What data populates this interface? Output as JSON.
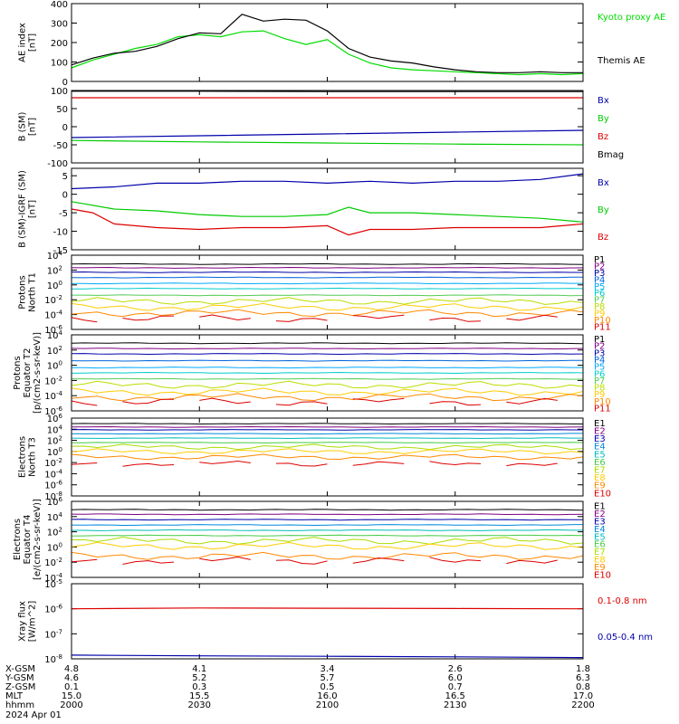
{
  "chart_data": [
    {
      "type": "line",
      "ylabel": "AE index [nT]",
      "yscale": "linear",
      "ylim": [
        0,
        400
      ],
      "yticks": [
        0,
        100,
        200,
        300,
        400
      ],
      "legend_placement": "right",
      "series": [
        {
          "name": "Kyoto proxy AE",
          "color": "#00dd00",
          "x": [
            2000,
            2005,
            2010,
            2015,
            2020,
            2025,
            2030,
            2035,
            2040,
            2045,
            2050,
            2055,
            2100,
            2105,
            2110,
            2115,
            2120,
            2125,
            2130,
            2135,
            2140,
            2145,
            2150,
            2155,
            2200
          ],
          "y": [
            70,
            110,
            140,
            170,
            190,
            230,
            240,
            230,
            255,
            260,
            220,
            190,
            215,
            140,
            95,
            70,
            60,
            55,
            50,
            45,
            40,
            35,
            40,
            35,
            40
          ]
        },
        {
          "name": "Themis AE",
          "color": "#000000",
          "x": [
            2000,
            2005,
            2010,
            2015,
            2020,
            2025,
            2030,
            2035,
            2040,
            2045,
            2050,
            2055,
            2100,
            2105,
            2110,
            2115,
            2120,
            2125,
            2130,
            2135,
            2140,
            2145,
            2150,
            2155,
            2200
          ],
          "y": [
            85,
            120,
            145,
            155,
            180,
            220,
            250,
            245,
            345,
            310,
            320,
            315,
            260,
            170,
            125,
            105,
            95,
            75,
            60,
            50,
            45,
            45,
            50,
            45,
            45
          ]
        }
      ]
    },
    {
      "type": "line",
      "ylabel": "B (SM) [nT]",
      "yscale": "linear",
      "ylim": [
        -100,
        100
      ],
      "yticks": [
        -100,
        -50,
        0,
        50,
        100
      ],
      "series": [
        {
          "name": "Bx",
          "color": "#0000aa",
          "x": [
            2000,
            2030,
            2100,
            2130,
            2200
          ],
          "y": [
            -30,
            -25,
            -20,
            -15,
            -10
          ]
        },
        {
          "name": "By",
          "color": "#00cc00",
          "x": [
            2000,
            2030,
            2100,
            2130,
            2200
          ],
          "y": [
            -38,
            -42,
            -45,
            -48,
            -50
          ]
        },
        {
          "name": "Bz",
          "color": "#dd0000",
          "x": [
            2000,
            2030,
            2100,
            2130,
            2200
          ],
          "y": [
            80,
            80,
            80,
            80,
            80
          ]
        },
        {
          "name": "Bmag",
          "color": "#000000",
          "x": [
            2000,
            2030,
            2100,
            2130,
            2200
          ],
          "y": [
            98,
            98,
            97,
            97,
            97
          ]
        }
      ]
    },
    {
      "type": "line",
      "ylabel": "B (SM)-IGRF (SM) [nT]",
      "yscale": "linear",
      "ylim": [
        -15,
        7
      ],
      "yticks": [
        -15,
        -10,
        -5,
        0,
        5
      ],
      "series": [
        {
          "name": "Bx",
          "color": "#0000aa",
          "x": [
            2000,
            2010,
            2020,
            2030,
            2040,
            2050,
            2100,
            2110,
            2120,
            2130,
            2140,
            2150,
            2200
          ],
          "y": [
            1.5,
            2,
            3,
            3,
            3.5,
            3.5,
            3,
            3.5,
            3,
            3.5,
            3.5,
            4,
            5.5
          ]
        },
        {
          "name": "By",
          "color": "#00cc00",
          "x": [
            2000,
            2010,
            2020,
            2030,
            2040,
            2050,
            2100,
            2105,
            2110,
            2120,
            2130,
            2140,
            2150,
            2200
          ],
          "y": [
            -2,
            -4,
            -4.5,
            -5.5,
            -6,
            -6,
            -5.5,
            -3.5,
            -5,
            -5,
            -5.5,
            -6,
            -6.5,
            -7.5
          ]
        },
        {
          "name": "Bz",
          "color": "#dd0000",
          "x": [
            2000,
            2005,
            2010,
            2020,
            2030,
            2040,
            2050,
            2100,
            2105,
            2110,
            2120,
            2130,
            2140,
            2150,
            2200
          ],
          "y": [
            -4,
            -5,
            -8,
            -9,
            -9.5,
            -9,
            -9,
            -8.5,
            -11,
            -9.5,
            -9.5,
            -9,
            -9,
            -9,
            -8
          ]
        }
      ]
    },
    {
      "type": "line",
      "ylabel": "Protons North T1",
      "yscale": "log",
      "ylim_exp": [
        -6,
        4
      ],
      "ytick_labels": [
        "10-6",
        "10-4",
        "10-2",
        "100",
        "102",
        "104"
      ],
      "channels": [
        "P1",
        "P2",
        "P3",
        "P4",
        "P5",
        "P6",
        "P7",
        "P8",
        "P9",
        "P10",
        "P11"
      ],
      "channel_colors": [
        "#000000",
        "#800080",
        "#0000aa",
        "#0066dd",
        "#00aaff",
        "#00cccc",
        "#55cc55",
        "#bbdd00",
        "#ffcc00",
        "#ff8800",
        "#dd0000"
      ],
      "channel_log_values": [
        2.8,
        2.3,
        1.7,
        1.0,
        0.2,
        -0.5,
        -1.4,
        -2.2,
        -3.0,
        -3.8,
        -4.5
      ]
    },
    {
      "type": "line",
      "ylabel": "Protons Equator T2 [p/(cm2-s-sr-keV)]",
      "yscale": "log",
      "ylim_exp": [
        -6,
        4
      ],
      "ytick_labels": [
        "10-6",
        "10-4",
        "10-2",
        "100",
        "102",
        "104"
      ],
      "channels": [
        "P1",
        "P2",
        "P3",
        "P4",
        "P5",
        "P6",
        "P7",
        "P8",
        "P9",
        "P10",
        "P11"
      ],
      "channel_colors": [
        "#000000",
        "#800080",
        "#0000aa",
        "#0066dd",
        "#00aaff",
        "#00cccc",
        "#55cc55",
        "#bbdd00",
        "#ffcc00",
        "#ff8800",
        "#dd0000"
      ],
      "channel_log_values": [
        2.9,
        2.2,
        1.5,
        0.6,
        -0.3,
        -1.0,
        -1.8,
        -2.6,
        -3.5,
        -4.2,
        -4.8
      ]
    },
    {
      "type": "line",
      "ylabel": "Electrons North T3",
      "yscale": "log",
      "ylim_exp": [
        -8,
        6
      ],
      "ytick_labels": [
        "10-8",
        "10-6",
        "10-4",
        "10-2",
        "100",
        "102",
        "104",
        "106"
      ],
      "channels": [
        "E1",
        "E2",
        "E3",
        "E4",
        "E5",
        "E6",
        "E7",
        "E8",
        "E9",
        "E10"
      ],
      "channel_colors": [
        "#000000",
        "#800080",
        "#0000aa",
        "#0088dd",
        "#00bbbb",
        "#44cc44",
        "#aadd00",
        "#ffcc00",
        "#ff8800",
        "#dd0000"
      ],
      "channel_log_values": [
        5.0,
        4.4,
        3.9,
        3.2,
        2.4,
        1.6,
        0.8,
        0.0,
        -1.0,
        -2.2
      ]
    },
    {
      "type": "line",
      "ylabel": "Electrons Equator T4 [e/(cm2-s-sr-keV)]",
      "yscale": "log",
      "ylim_exp": [
        -4,
        6
      ],
      "ytick_labels": [
        "10-4",
        "10-2",
        "100",
        "102",
        "104",
        "106"
      ],
      "channels": [
        "E1",
        "E2",
        "E3",
        "E4",
        "E5",
        "E6",
        "E7",
        "E8",
        "E9",
        "E10"
      ],
      "channel_colors": [
        "#000000",
        "#800080",
        "#0000aa",
        "#0088dd",
        "#00bbbb",
        "#44cc44",
        "#aadd00",
        "#ffcc00",
        "#ff8800",
        "#dd0000"
      ],
      "channel_log_values": [
        4.9,
        4.3,
        3.6,
        2.9,
        2.2,
        1.5,
        0.8,
        0.1,
        -1.2,
        -1.8
      ]
    },
    {
      "type": "line",
      "ylabel": "Xray flux [W/m^2]",
      "yscale": "log",
      "ylim_exp": [
        -8,
        -5
      ],
      "ytick_labels": [
        "10-8",
        "10-7",
        "10-6",
        "10-5"
      ],
      "series": [
        {
          "name": "0.1-0.8 nm",
          "color": "#dd0000",
          "x": [
            2000,
            2030,
            2100,
            2130,
            2200
          ],
          "y_exp": [
            -6.0,
            -5.97,
            -5.98,
            -5.99,
            -6.0
          ]
        },
        {
          "name": "0.05-0.4 nm",
          "color": "#0000aa",
          "x": [
            2000,
            2030,
            2100,
            2130,
            2200
          ],
          "y_exp": [
            -7.85,
            -7.88,
            -7.9,
            -7.92,
            -7.95
          ]
        }
      ]
    }
  ],
  "x_axis": {
    "rows": [
      {
        "label": "X-GSM",
        "values": [
          "4.8",
          "4.1",
          "3.4",
          "2.6",
          "1.8"
        ]
      },
      {
        "label": "Y-GSM",
        "values": [
          "4.6",
          "5.2",
          "5.7",
          "6.0",
          "6.3"
        ]
      },
      {
        "label": "Z-GSM",
        "values": [
          "0.1",
          "0.3",
          "0.5",
          "0.7",
          "0.8"
        ]
      },
      {
        "label": "MLT",
        "values": [
          "15.0",
          "15.5",
          "16.0",
          "16.5",
          "17.0"
        ]
      },
      {
        "label": "hhmm",
        "values": [
          "2000",
          "2030",
          "2100",
          "2130",
          "2200"
        ]
      }
    ],
    "date": "2024 Apr 01"
  }
}
